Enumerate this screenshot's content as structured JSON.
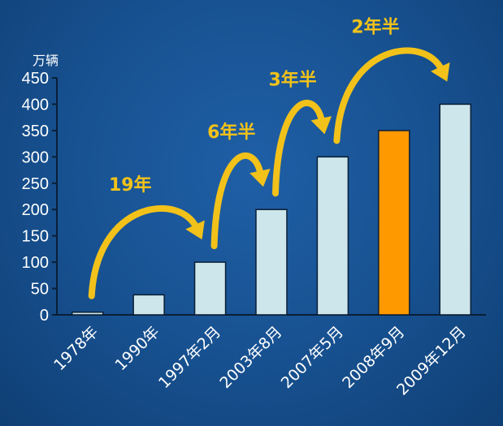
{
  "chart_data": {
    "type": "bar",
    "ylabel": "万辆",
    "ylim": [
      0,
      450
    ],
    "yticks": [
      0,
      50,
      100,
      150,
      200,
      250,
      300,
      350,
      400,
      450
    ],
    "categories": [
      "1978年",
      "1990年",
      "1997年2月",
      "2003年8月",
      "2007年5月",
      "2008年9月",
      "2009年12月"
    ],
    "values": [
      5,
      38,
      100,
      200,
      300,
      350,
      400
    ],
    "bar_colors": [
      "#cde6ec",
      "#cde6ec",
      "#cde6ec",
      "#cde6ec",
      "#cde6ec",
      "#ff9900",
      "#cde6ec"
    ],
    "annotations": [
      {
        "text": "19年",
        "from_category": "1978年",
        "to_category": "1997年2月"
      },
      {
        "text": "6年半",
        "from_category": "1997年2月",
        "to_category": "2003年8月"
      },
      {
        "text": "3年半",
        "from_category": "2003年8月",
        "to_category": "2007年5月"
      },
      {
        "text": "2年半",
        "from_category": "2007年5月",
        "to_category": "2009年12月"
      }
    ],
    "grid": false,
    "legend": "none"
  },
  "colors": {
    "background": "#17508f",
    "bar": "#cde6ec",
    "highlight_bar": "#ff9900",
    "arrow": "#f2c21a",
    "text": "#ffffff"
  }
}
